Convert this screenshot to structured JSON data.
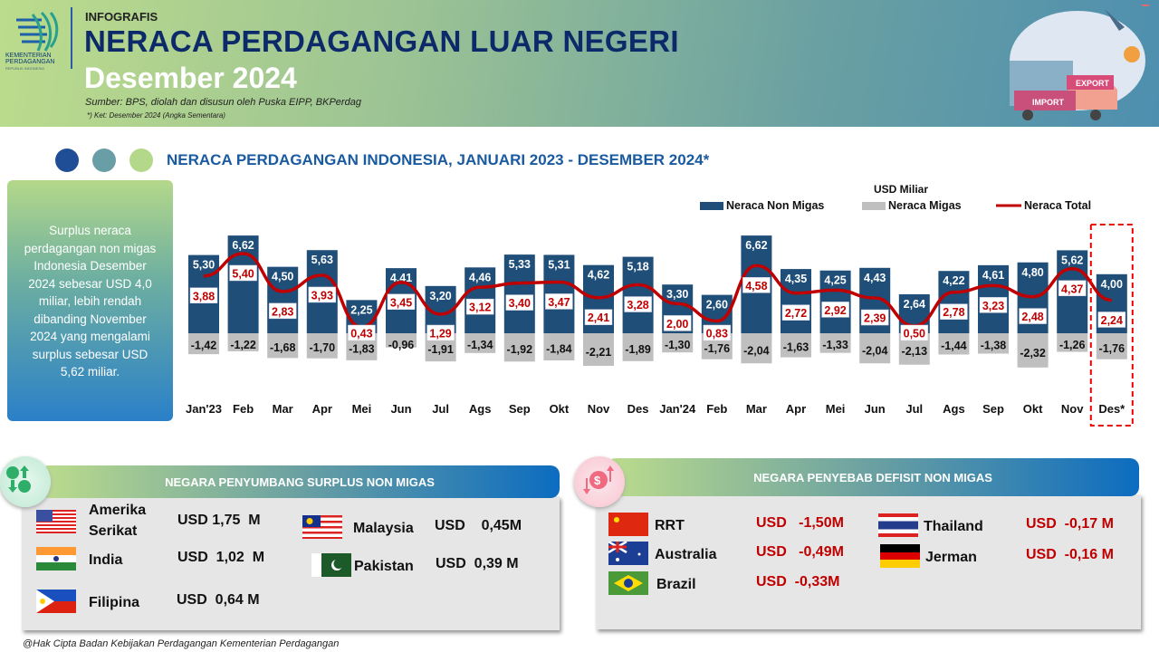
{
  "header": {
    "logo_text": [
      "KEMENTERIAN",
      "PERDAGANGAN"
    ],
    "logo_sub": "REPUBLIK INDONESIA",
    "label": "INFOGRAFIS",
    "title": "NERACA PERDAGANGAN LUAR NEGERI",
    "subtitle": "Desember 2024",
    "source": "Sumber: BPS, diolah dan disusun oleh Puska EIPP, BKPerdag",
    "note": "*) Ket: Desember 2024 (Angka Sementara)",
    "illustration_labels": {
      "export": "EXPORT",
      "import": "IMPORT"
    }
  },
  "summary": "Surplus neraca perdagangan non migas Indonesia Desember 2024 sebesar USD 4,0 miliar, lebih rendah dibanding November 2024 yang mengalami surplus sebesar USD 5,62 miliar.",
  "colors": {
    "non_migas": "#1f4e79",
    "migas": "#bfbfbf",
    "total": "#c00000",
    "dot1": "#1f4e96",
    "dot2": "#6a9ea6",
    "dot3": "#b4d88a"
  },
  "chart_data": {
    "type": "bar",
    "title": "NERACA PERDAGANGAN INDONESIA, JANUARI 2023 - DESEMBER 2024*",
    "unit": "USD Miliar",
    "legend_placement": "top-right",
    "categories": [
      "Jan'23",
      "Feb",
      "Mar",
      "Apr",
      "Mei",
      "Jun",
      "Jul",
      "Ags",
      "Sep",
      "Okt",
      "Nov",
      "Des",
      "Jan'24",
      "Feb",
      "Mar",
      "Apr",
      "Mei",
      "Jun",
      "Jul",
      "Ags",
      "Sep",
      "Okt",
      "Nov",
      "Des*"
    ],
    "series": [
      {
        "name": "Neraca Non Migas",
        "type": "bar",
        "values": [
          5.3,
          6.62,
          4.5,
          5.63,
          2.25,
          4.41,
          3.2,
          4.46,
          5.33,
          5.31,
          4.62,
          5.18,
          3.3,
          2.6,
          6.62,
          4.35,
          4.25,
          4.43,
          2.64,
          4.22,
          4.61,
          4.8,
          5.62,
          4.0
        ],
        "labels": [
          "5,30",
          "6,62",
          "4,50",
          "5,63",
          "2,25",
          "4,41",
          "3,20",
          "4,46",
          "5,33",
          "5,31",
          "4,62",
          "5,18",
          "3,30",
          "2,60",
          "6,62",
          "4,35",
          "4,25",
          "4,43",
          "2,64",
          "4,22",
          "4,61",
          "4,80",
          "5,62",
          "4,00"
        ]
      },
      {
        "name": "Neraca Migas",
        "type": "bar",
        "values": [
          -1.42,
          -1.22,
          -1.68,
          -1.7,
          -1.83,
          -0.96,
          -1.91,
          -1.34,
          -1.92,
          -1.84,
          -2.21,
          -1.89,
          -1.3,
          -1.76,
          -2.04,
          -1.63,
          -1.33,
          -2.04,
          -2.13,
          -1.44,
          -1.38,
          -2.32,
          -1.26,
          -1.76
        ],
        "labels": [
          "-1,42",
          "-1,22",
          "-1,68",
          "-1,70",
          "-1,83",
          "-0,96",
          "-1,91",
          "-1,34",
          "-1,92",
          "-1,84",
          "-2,21",
          "-1,89",
          "-1,30",
          "-1,76",
          "-2,04",
          "-1,63",
          "-1,33",
          "-2,04",
          "-2,13",
          "-1,44",
          "-1,38",
          "-2,32",
          "-1,26",
          "-1,76"
        ]
      },
      {
        "name": "Neraca Total",
        "type": "line",
        "values": [
          3.88,
          5.4,
          2.83,
          3.93,
          0.43,
          3.45,
          1.29,
          3.12,
          3.4,
          3.47,
          2.41,
          3.28,
          2.0,
          0.83,
          4.58,
          2.72,
          2.92,
          2.39,
          0.5,
          2.78,
          3.23,
          2.48,
          4.37,
          2.24
        ],
        "labels": [
          "3,88",
          "5,40",
          "2,83",
          "3,93",
          "0,43",
          "3,45",
          "1,29",
          "3,12",
          "3,40",
          "3,47",
          "2,41",
          "3,28",
          "2,00",
          "0,83",
          "4,58",
          "2,72",
          "2,92",
          "2,39",
          "0,50",
          "2,78",
          "3,23",
          "2,48",
          "4,37",
          "2,24"
        ]
      }
    ],
    "highlight": "Des*"
  },
  "surplus": {
    "title": "NEGARA PENYUMBANG SURPLUS NON MIGAS",
    "items": [
      {
        "country": "Amerika Serikat",
        "value": "USD 1,75  M",
        "flag": "us"
      },
      {
        "country": "India",
        "value": "USD  1,02  M",
        "flag": "in"
      },
      {
        "country": "Filipina",
        "value": "USD  0,64 M",
        "flag": "ph"
      },
      {
        "country": "Malaysia",
        "value": "USD    0,45M",
        "flag": "my"
      },
      {
        "country": "Pakistan",
        "value": "USD  0,39 M",
        "flag": "pk"
      }
    ]
  },
  "deficit": {
    "title": "NEGARA PENYEBAB DEFISIT NON MIGAS",
    "items": [
      {
        "country": "RRT",
        "value": "USD   -1,50M",
        "flag": "cn"
      },
      {
        "country": "Australia",
        "value": "USD   -0,49M",
        "flag": "au"
      },
      {
        "country": "Brazil",
        "value": "USD  -0,33M",
        "flag": "br"
      },
      {
        "country": "Thailand",
        "value": "USD  -0,17 M",
        "flag": "th"
      },
      {
        "country": "Jerman",
        "value": "USD  -0,16 M",
        "flag": "de"
      }
    ]
  },
  "footer": "@Hak Cipta Badan Kebijakan Perdagangan Kementerian Perdagangan"
}
